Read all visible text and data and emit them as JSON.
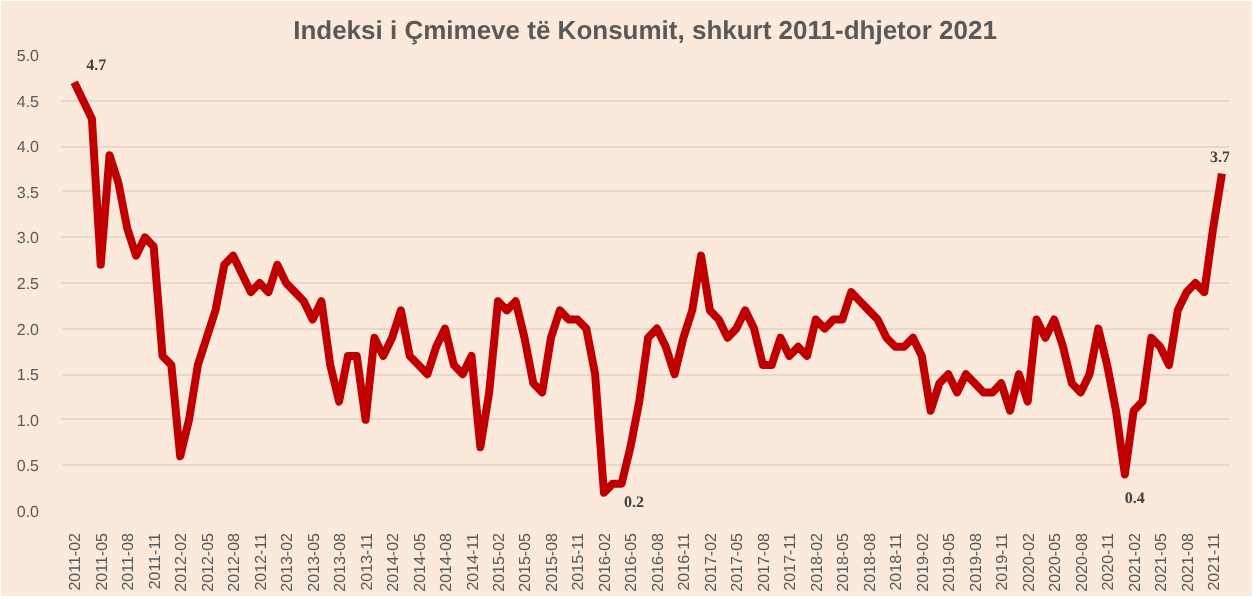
{
  "chart_data": {
    "type": "line",
    "title": "Indeksi i Çmimeve të Konsumit, shkurt 2011-dhjetor 2021",
    "categories": [
      "2011-02",
      null,
      null,
      "2011-05",
      null,
      null,
      "2011-08",
      null,
      null,
      "2011-11",
      null,
      null,
      "2012-02",
      null,
      null,
      "2012-05",
      null,
      null,
      "2012-08",
      null,
      null,
      "2012-11",
      null,
      null,
      "2013-02",
      null,
      null,
      "2013-05",
      null,
      null,
      "2013-08",
      null,
      null,
      "2013-11",
      null,
      null,
      "2014-02",
      null,
      null,
      "2014-05",
      null,
      null,
      "2014-08",
      null,
      null,
      "2014-11",
      null,
      null,
      "2015-02",
      null,
      null,
      "2015-05",
      null,
      null,
      "2015-08",
      null,
      null,
      "2015-11",
      null,
      null,
      "2016-02",
      null,
      null,
      "2016-05",
      null,
      null,
      "2016-08",
      null,
      null,
      "2016-11",
      null,
      null,
      "2017-02",
      null,
      null,
      "2017-05",
      null,
      null,
      "2017-08",
      null,
      null,
      "2017-11",
      null,
      null,
      "2018-02",
      null,
      null,
      "2018-05",
      null,
      null,
      "2018-08",
      null,
      null,
      "2018-11",
      null,
      null,
      "2019-02",
      null,
      null,
      "2019-05",
      null,
      null,
      "2019-08",
      null,
      null,
      "2019-11",
      null,
      null,
      "2020-02",
      null,
      null,
      "2020-05",
      null,
      null,
      "2020-08",
      null,
      null,
      "2020-11",
      null,
      null,
      "2021-02",
      null,
      null,
      "2021-05",
      null,
      null,
      "2021-08",
      null,
      null,
      "2021-11",
      null
    ],
    "values": [
      4.7,
      4.5,
      4.3,
      2.7,
      3.9,
      3.6,
      3.1,
      2.8,
      3.0,
      2.9,
      1.7,
      1.6,
      0.6,
      1.0,
      1.6,
      1.9,
      2.2,
      2.7,
      2.8,
      2.6,
      2.4,
      2.5,
      2.4,
      2.7,
      2.5,
      2.4,
      2.3,
      2.1,
      2.3,
      1.6,
      1.2,
      1.7,
      1.7,
      1.0,
      1.9,
      1.7,
      1.9,
      2.2,
      1.7,
      1.6,
      1.5,
      1.8,
      2.0,
      1.6,
      1.5,
      1.7,
      0.7,
      1.3,
      2.3,
      2.2,
      2.3,
      1.9,
      1.4,
      1.3,
      1.9,
      2.2,
      2.1,
      2.1,
      2.0,
      1.5,
      0.2,
      0.3,
      0.3,
      0.7,
      1.2,
      1.9,
      2.0,
      1.8,
      1.5,
      1.9,
      2.2,
      2.8,
      2.2,
      2.1,
      1.9,
      2.0,
      2.2,
      2.0,
      1.6,
      1.6,
      1.9,
      1.7,
      1.8,
      1.7,
      2.1,
      2.0,
      2.1,
      2.1,
      2.4,
      2.3,
      2.2,
      2.1,
      1.9,
      1.8,
      1.8,
      1.9,
      1.7,
      1.1,
      1.4,
      1.5,
      1.3,
      1.5,
      1.4,
      1.3,
      1.3,
      1.4,
      1.1,
      1.5,
      1.2,
      2.1,
      1.9,
      2.1,
      1.8,
      1.4,
      1.3,
      1.5,
      2.0,
      1.6,
      1.1,
      0.4,
      1.1,
      1.2,
      1.9,
      1.8,
      1.6,
      2.2,
      2.4,
      2.5,
      2.4,
      3.1,
      3.7
    ],
    "value_labels": [
      "4.7",
      null,
      null,
      null,
      null,
      null,
      null,
      null,
      null,
      null,
      null,
      null,
      null,
      null,
      null,
      null,
      null,
      null,
      null,
      null,
      null,
      null,
      null,
      null,
      null,
      null,
      null,
      null,
      null,
      null,
      null,
      null,
      null,
      null,
      null,
      null,
      null,
      null,
      null,
      null,
      null,
      null,
      null,
      null,
      null,
      null,
      null,
      null,
      null,
      null,
      null,
      null,
      null,
      null,
      null,
      null,
      null,
      null,
      null,
      null,
      "0.2",
      null,
      null,
      null,
      null,
      null,
      null,
      null,
      null,
      null,
      null,
      null,
      null,
      null,
      null,
      null,
      null,
      null,
      null,
      null,
      null,
      null,
      null,
      null,
      null,
      null,
      null,
      null,
      null,
      null,
      null,
      null,
      null,
      null,
      null,
      null,
      null,
      null,
      null,
      null,
      null,
      null,
      null,
      null,
      null,
      null,
      null,
      null,
      null,
      null,
      null,
      null,
      null,
      null,
      null,
      null,
      null,
      null,
      null,
      "0.4",
      null,
      null,
      null,
      null,
      null,
      null,
      null,
      null,
      null,
      null,
      "3.7"
    ],
    "color": "#c00000",
    "ylim": [
      0,
      5
    ],
    "yticks": [
      {
        "value": 0,
        "label": "0.0"
      },
      {
        "value": 0.5,
        "label": "0.5"
      },
      {
        "value": 1,
        "label": "1.0"
      },
      {
        "value": 1.5,
        "label": "1.5"
      },
      {
        "value": 2,
        "label": "2.0"
      },
      {
        "value": 2.5,
        "label": "2.5"
      },
      {
        "value": 3,
        "label": "3.0"
      },
      {
        "value": 3.5,
        "label": "3.5"
      },
      {
        "value": 4,
        "label": "4.0"
      },
      {
        "value": 4.5,
        "label": "4.5"
      },
      {
        "value": 5,
        "label": "5.0"
      }
    ],
    "grid": "y",
    "marker": "none",
    "line_style": "solid"
  }
}
